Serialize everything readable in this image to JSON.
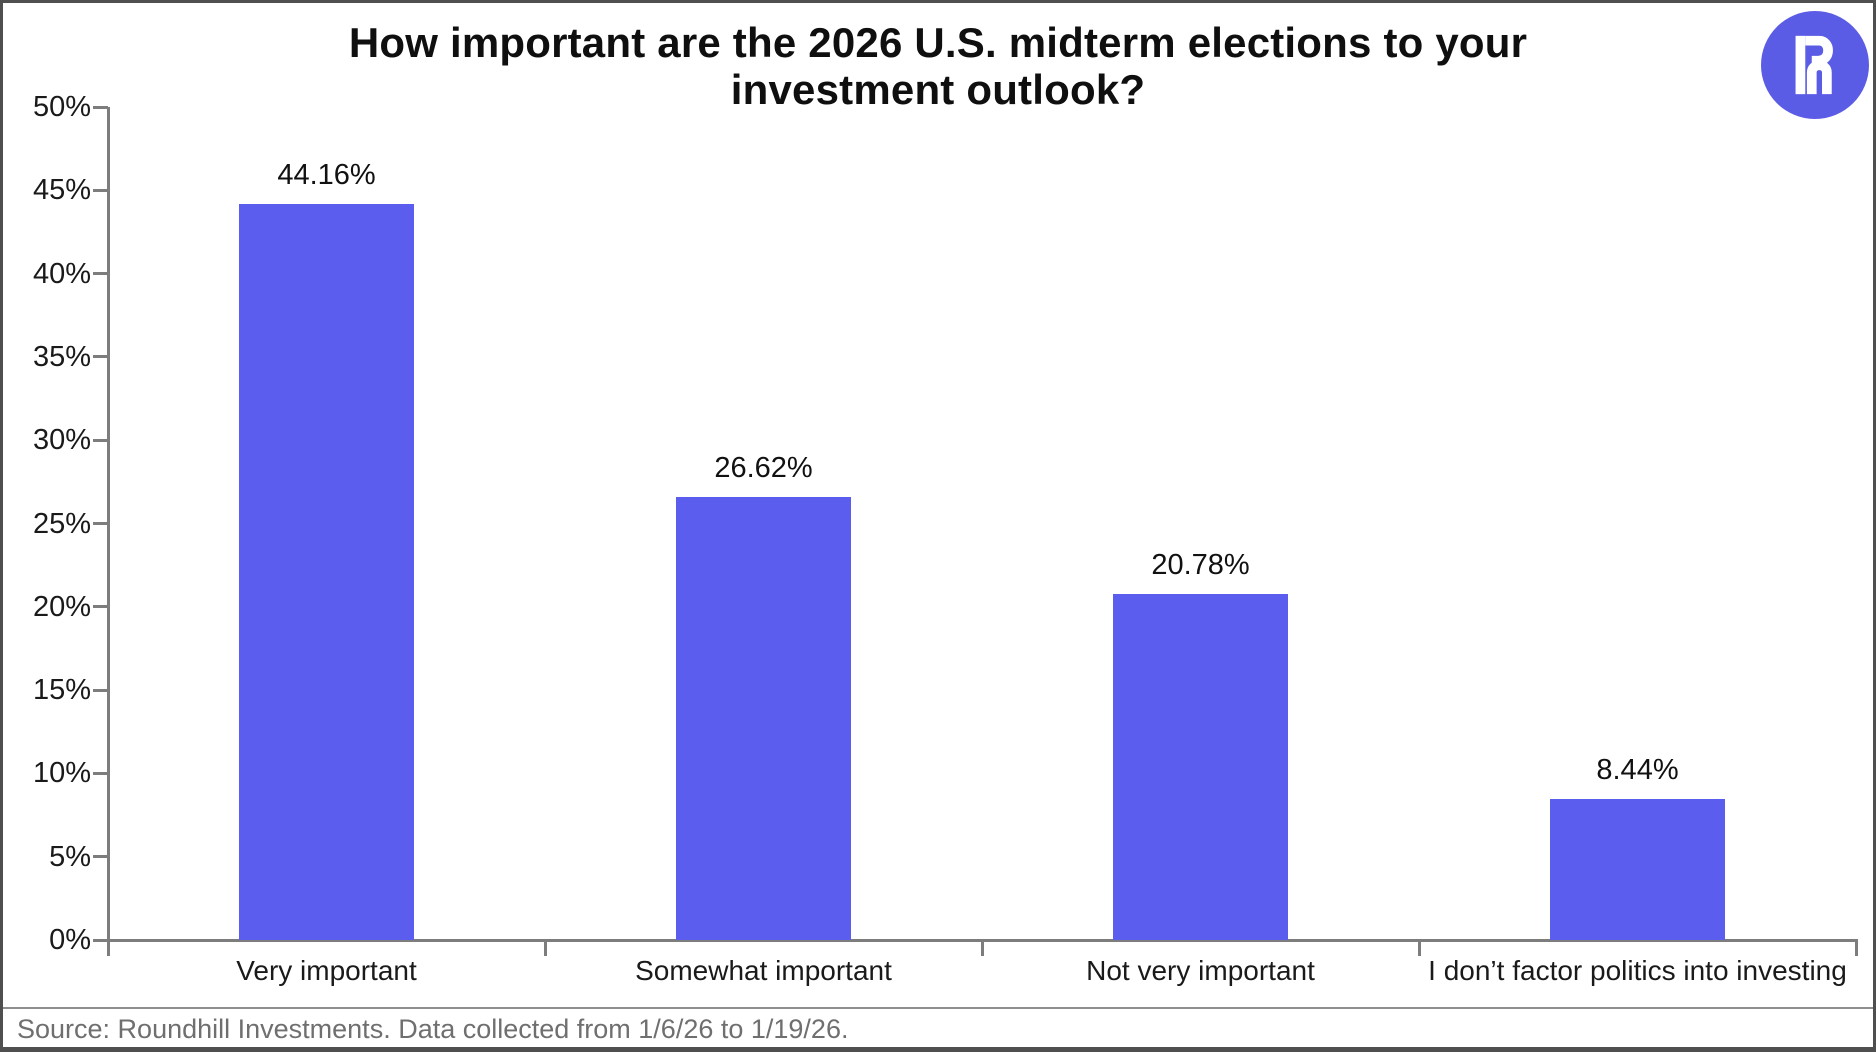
{
  "header": {
    "title_line1": "How important are the 2026 U.S. midterm elections to your",
    "title_line2": "investment outlook?"
  },
  "logo": {
    "name": "Roundhill Investments logo",
    "background": "#5b5ce6",
    "glyph_color": "#ffffff"
  },
  "chart_data": {
    "type": "bar",
    "title": "How important are the 2026 U.S. midterm elections to your investment outlook?",
    "categories": [
      "Very important",
      "Somewhat important",
      "Not very important",
      "I don’t factor politics into investing"
    ],
    "values": [
      44.16,
      26.62,
      20.78,
      8.44
    ],
    "value_labels": [
      "44.16%",
      "26.62%",
      "20.78%",
      "8.44%"
    ],
    "xlabel": "",
    "ylabel": "",
    "ylim": [
      0,
      50
    ],
    "ytick_step": 5,
    "ytick_labels": [
      "0%",
      "5%",
      "10%",
      "15%",
      "20%",
      "25%",
      "30%",
      "35%",
      "40%",
      "45%",
      "50%"
    ],
    "grid": false,
    "legend": false,
    "bar_color": "#5a5dee"
  },
  "footer": {
    "source": "Source: Roundhill Investments. Data collected from 1/6/26 to 1/19/26."
  },
  "colors": {
    "accent": "#5a5dee",
    "axis": "#7d7d7d",
    "title_text": "#0f0f0f",
    "label_text": "#1a1a1a",
    "muted_text": "#6f6f6f",
    "border": "#4f4f4f",
    "divider": "#8f8f8f"
  }
}
